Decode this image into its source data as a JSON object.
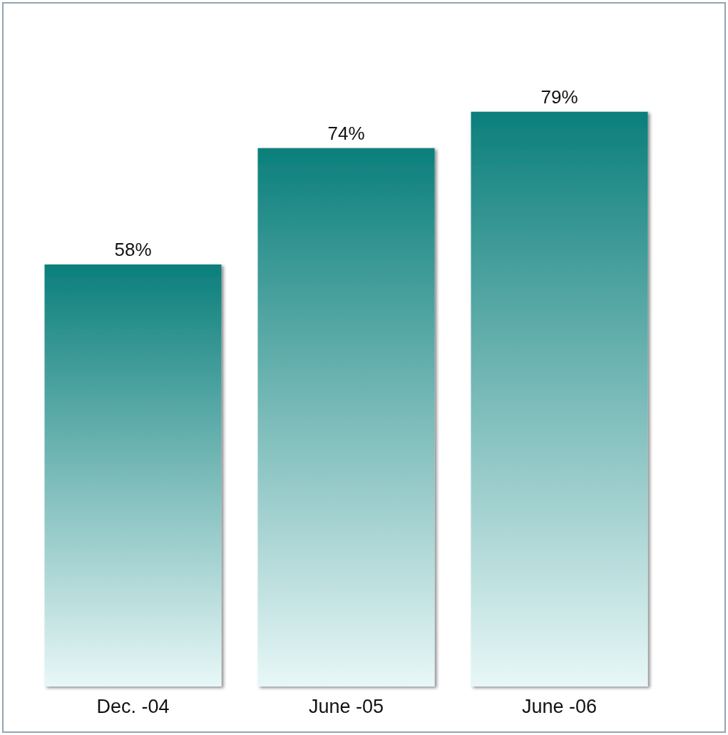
{
  "chart_data": {
    "type": "bar",
    "categories": [
      "Dec. -04",
      "June -05",
      "June -06"
    ],
    "values": [
      58,
      74,
      79
    ],
    "value_labels": [
      "58%",
      "74%",
      "79%"
    ],
    "color": "#0b7f7b"
  }
}
